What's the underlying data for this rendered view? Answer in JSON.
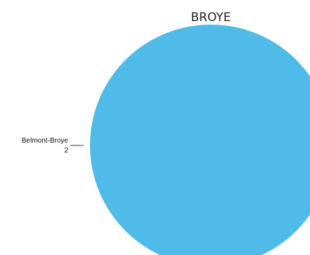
{
  "chart_data": {
    "type": "pie",
    "title": "BROYE",
    "slices": [
      {
        "label": "Belmont-Broye",
        "value": 2,
        "color": "#4fbbe8"
      }
    ]
  }
}
